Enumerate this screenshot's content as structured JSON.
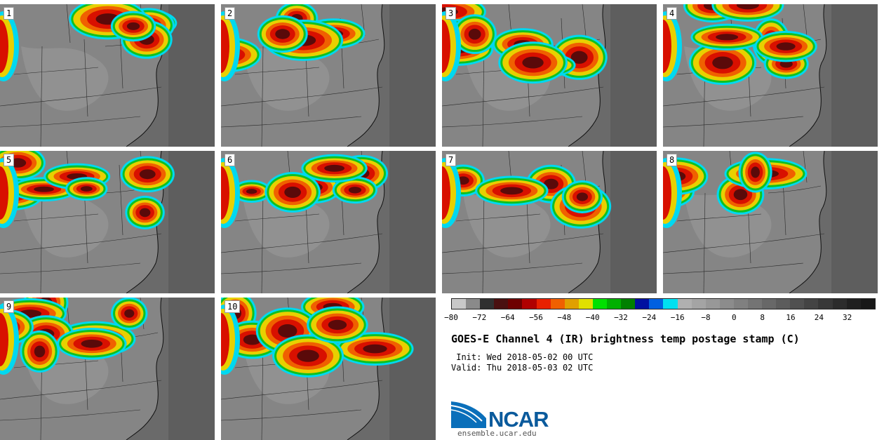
{
  "panels": [
    {
      "label": "1"
    },
    {
      "label": "2"
    },
    {
      "label": "3"
    },
    {
      "label": "4"
    },
    {
      "label": "5"
    },
    {
      "label": "6"
    },
    {
      "label": "7"
    },
    {
      "label": "8"
    },
    {
      "label": "9"
    },
    {
      "label": "10"
    }
  ],
  "colorbar": {
    "colors": [
      "#c8c8c8",
      "#8a8a8a",
      "#303030",
      "#4a1010",
      "#6e0000",
      "#b00000",
      "#e82000",
      "#f06000",
      "#e0a000",
      "#e0e000",
      "#00e000",
      "#00b000",
      "#008000",
      "#0010a0",
      "#0060e0",
      "#00e0f0",
      "#b0b0b0",
      "#a4a4a4",
      "#989898",
      "#8c8c8c",
      "#808080",
      "#747474",
      "#686868",
      "#5c5c5c",
      "#505050",
      "#444444",
      "#383838",
      "#2c2c2c",
      "#202020",
      "#181818"
    ],
    "tick_labels": [
      "−80",
      "−72",
      "−64",
      "−56",
      "−48",
      "−40",
      "−32",
      "−24",
      "−16",
      "−8",
      "0",
      "8",
      "16",
      "24",
      "32"
    ]
  },
  "title": "GOES-E Channel 4 (IR) brightness temp postage stamp (C)",
  "init_line": " Init: Wed 2018-05-02 00 UTC",
  "valid_line": "Valid: Thu 2018-05-03 02 UTC",
  "logo": {
    "text": "NCAR",
    "url": "ensemble.ucar.edu"
  }
}
